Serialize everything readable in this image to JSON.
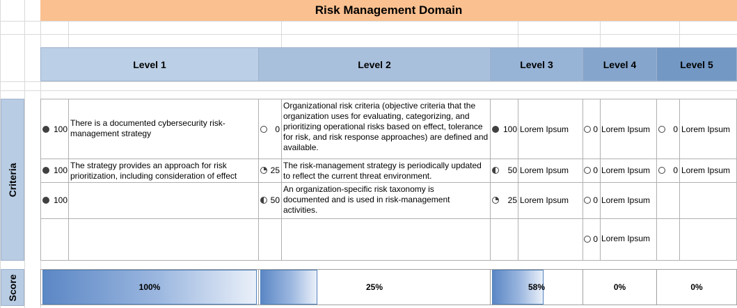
{
  "title": "Risk Management Domain",
  "levels": [
    "Level 1",
    "Level 2",
    "Level 3",
    "Level 4",
    "Level 5"
  ],
  "side_labels": {
    "criteria": "Criteria",
    "score": "Score"
  },
  "rows": [
    {
      "l1": {
        "icon": "full-circle-icon",
        "value": "100",
        "text": "There is a documented cybersecurity risk-management strategy"
      },
      "l2": {
        "icon": "empty-circle-icon",
        "value": "0",
        "text": "Organizational risk criteria (objective criteria that the organization uses for evaluating, categorizing, and prioritizing operational risks based on effect, tolerance for risk, and risk response approaches) are defined and available."
      },
      "l3": {
        "icon": "full-circle-icon",
        "value": "100",
        "text": "Lorem Ipsum"
      },
      "l4": {
        "icon": "empty-circle-icon",
        "value": "0",
        "text": "Lorem Ipsum"
      },
      "l5": {
        "icon": "empty-circle-icon",
        "value": "0",
        "text": "Lorem Ipsum"
      }
    },
    {
      "l1": {
        "icon": "full-circle-icon",
        "value": "100",
        "text": "The strategy provides an approach for risk prioritization, including consideration of effect"
      },
      "l2": {
        "icon": "quarter-circle-icon",
        "value": "25",
        "text": "The risk-management strategy is periodically updated to reflect the current threat environment."
      },
      "l3": {
        "icon": "half-circle-icon",
        "value": "50",
        "text": "Lorem Ipsum"
      },
      "l4": {
        "icon": "empty-circle-icon",
        "value": "0",
        "text": "Lorem Ipsum"
      },
      "l5": {
        "icon": "empty-circle-icon",
        "value": "0",
        "text": "Lorem Ipsum"
      }
    },
    {
      "l1": {
        "icon": "full-circle-icon",
        "value": "100",
        "text": ""
      },
      "l2": {
        "icon": "half-circle-icon",
        "value": "50",
        "text": "An organization-specific risk taxonomy is documented and is used in risk-management activities."
      },
      "l3": {
        "icon": "quarter-circle-icon",
        "value": "25",
        "text": "Lorem Ipsum"
      },
      "l4": {
        "icon": "empty-circle-icon",
        "value": "0",
        "text": "Lorem Ipsum"
      }
    },
    {
      "l4": {
        "icon": "empty-circle-icon",
        "value": "0",
        "text": "Lorem Ipsum"
      }
    }
  ],
  "scores": [
    {
      "label": "100%",
      "fraction": 1.0
    },
    {
      "label": "25%",
      "fraction": 0.25
    },
    {
      "label": "58%",
      "fraction": 0.58
    },
    {
      "label": "0%",
      "fraction": 0
    },
    {
      "label": "0%",
      "fraction": 0
    }
  ],
  "colors": {
    "title_bg": "#fac090",
    "level_bg": [
      "#bbcfe6",
      "#a9c0dd",
      "#97b3d5",
      "#85a5cc",
      "#7398c4"
    ],
    "score_bar": "#5b87c5"
  }
}
